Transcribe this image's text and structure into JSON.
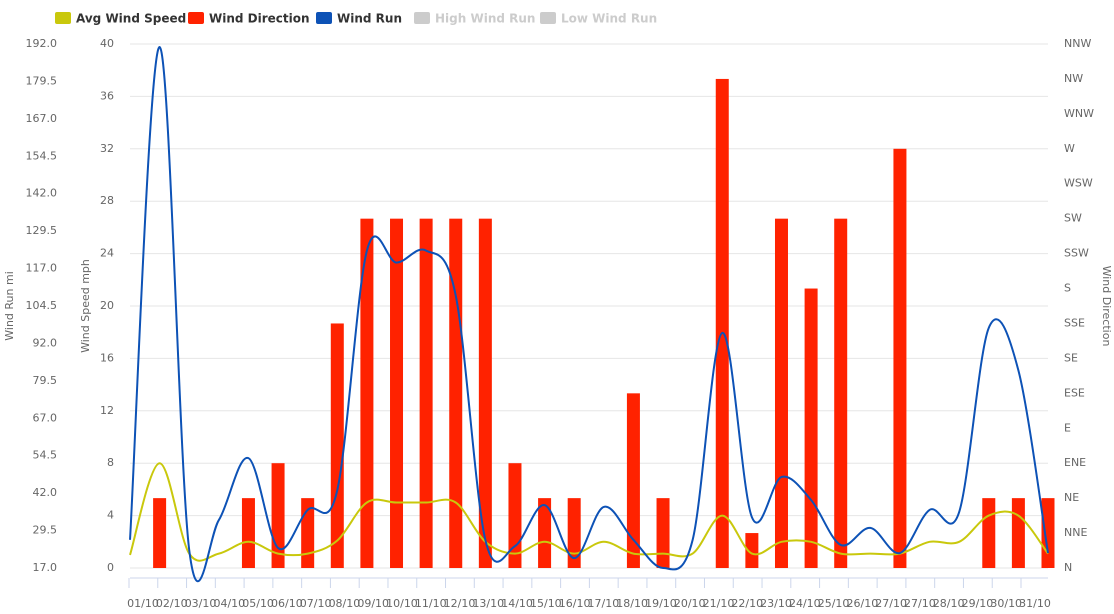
{
  "chart_data": {
    "type": "combo",
    "categories": [
      "01/10",
      "02/10",
      "03/10",
      "04/10",
      "05/10",
      "06/10",
      "07/10",
      "08/10",
      "09/10",
      "10/10",
      "11/10",
      "12/10",
      "13/10",
      "14/10",
      "15/10",
      "16/10",
      "17/10",
      "18/10",
      "19/10",
      "20/10",
      "21/10",
      "22/10",
      "23/10",
      "24/10",
      "25/10",
      "26/10",
      "27/10",
      "27/10",
      "28/10",
      "29/10",
      "30/10",
      "31/10"
    ],
    "ylabel": "Wind Speed mph",
    "ylim": [
      0,
      40
    ],
    "yticks": [
      0,
      4,
      8,
      12,
      16,
      20,
      24,
      28,
      32,
      36,
      40
    ],
    "y3label": "Wind Run mi",
    "y3lim": [
      17,
      192
    ],
    "y3ticks": [
      {
        "value": 17,
        "label": "17.0"
      },
      29.5,
      {
        "value": 42,
        "label": "42.0"
      },
      54.5,
      {
        "value": 67,
        "label": "67.0"
      },
      79.5,
      {
        "value": 92,
        "label": "92.0"
      },
      104.5,
      {
        "value": 117,
        "label": "117.0"
      },
      129.5,
      {
        "value": 142,
        "label": "142.0"
      },
      154.5,
      {
        "value": 167,
        "label": "167.0"
      },
      179.5,
      {
        "value": 192,
        "label": "192.0"
      }
    ],
    "y2label": "Wind Direction",
    "y2lim": [
      0,
      337.5
    ],
    "y2ticks": [
      {
        "value": 0,
        "label": "N"
      },
      {
        "value": 22.5,
        "label": "NNE"
      },
      {
        "value": 45,
        "label": "NE"
      },
      {
        "value": 67.5,
        "label": "ENE"
      },
      {
        "value": 90,
        "label": "E"
      },
      {
        "value": 112.5,
        "label": "ESE"
      },
      {
        "value": 135,
        "label": "SE"
      },
      {
        "value": 157.5,
        "label": "SSE"
      },
      {
        "value": 180,
        "label": "S"
      },
      {
        "value": 202.5,
        "label": "SSW"
      },
      {
        "value": 225,
        "label": "SW"
      },
      {
        "value": 247.5,
        "label": "WSW"
      },
      {
        "value": 270,
        "label": "W"
      },
      {
        "value": 292.5,
        "label": "WNW"
      },
      {
        "value": 315,
        "label": "NW"
      },
      {
        "value": 337.5,
        "label": "NNW"
      }
    ],
    "grid": true,
    "series": [
      {
        "name": "Avg Wind Speed",
        "type": "spline",
        "axis": "y",
        "color": "#c9c80c",
        "values": [
          1,
          8,
          1.1,
          1.1,
          2,
          1.1,
          1.1,
          2.1,
          5,
          5,
          5,
          5,
          2,
          1.1,
          2,
          1.1,
          2,
          1.1,
          1.1,
          1.1,
          4,
          1.1,
          2,
          2,
          1.1,
          1.1,
          1.1,
          2,
          2,
          4,
          4,
          1.1
        ]
      },
      {
        "name": "Wind Direction",
        "type": "bar",
        "axis": "y2",
        "color": "#ff2200",
        "values": [
          null,
          45,
          null,
          null,
          45,
          67.5,
          45,
          157.5,
          225,
          225,
          225,
          225,
          225,
          67.5,
          45,
          45,
          null,
          112.5,
          45,
          null,
          315,
          22.5,
          225,
          180,
          225,
          null,
          270,
          null,
          null,
          45,
          45,
          45
        ]
      },
      {
        "name": "Wind Run",
        "type": "spline",
        "axis": "y3",
        "color": "#0d52b6",
        "values": [
          26.4,
          191,
          23,
          33,
          53.7,
          23.7,
          36.4,
          43,
          123,
          119,
          123,
          108,
          26.4,
          24.3,
          38,
          20.3,
          37.4,
          26.4,
          17,
          26.4,
          95.5,
          34,
          47.4,
          39.7,
          24.7,
          30.4,
          22,
          36.4,
          35.7,
          97.2,
          83,
          22
        ]
      },
      {
        "name": "High Wind Run",
        "type": "spline",
        "axis": "y3",
        "color": "#cccccc",
        "visible": false
      },
      {
        "name": "Low Wind Run",
        "type": "spline",
        "axis": "y3",
        "color": "#cccccc",
        "visible": false
      }
    ]
  }
}
